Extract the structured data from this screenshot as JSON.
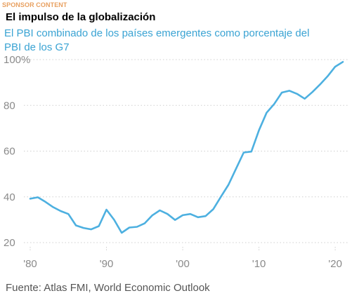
{
  "header": {
    "sponsor_label": "SPONSOR CONTENT",
    "title": "El impulso de la globalización",
    "subtitle": "El PBI combinado de los países emergentes como porcentaje del PBI de los G7"
  },
  "footer": {
    "source": "Fuente: Atlas FMI, World Economic Outlook"
  },
  "colors": {
    "sponsor": "#e8a060",
    "subtitle": "#3aa3d3",
    "line": "#4db0e0",
    "grid": "#cfcfcf",
    "ticks": "#8a8a8a"
  },
  "chart_data": {
    "type": "line",
    "title": "El impulso de la globalización",
    "subtitle": "El PBI combinado de los países emergentes como porcentaje del PBI de los G7",
    "xlim": [
      1980,
      2021
    ],
    "ylim": [
      20,
      100
    ],
    "grid": "horizontal dotted",
    "x_ticks": [
      {
        "value": 1980,
        "label": "'80"
      },
      {
        "value": 1990,
        "label": "'90"
      },
      {
        "value": 2000,
        "label": "'00"
      },
      {
        "value": 2010,
        "label": "'10"
      },
      {
        "value": 2020,
        "label": "'20"
      }
    ],
    "y_ticks": [
      {
        "value": 20,
        "label": "20"
      },
      {
        "value": 40,
        "label": "40"
      },
      {
        "value": 60,
        "label": "60"
      },
      {
        "value": 80,
        "label": "80"
      },
      {
        "value": 100,
        "label": "100%"
      }
    ],
    "series": [
      {
        "x": [
          1980,
          1981,
          1982,
          1983,
          1984,
          1985,
          1986,
          1987,
          1988,
          1989,
          1990,
          1991,
          1992,
          1993,
          1994,
          1995,
          1996,
          1997,
          1998,
          1999,
          2000,
          2001,
          2002,
          2003,
          2004,
          2005,
          2006,
          2007,
          2008,
          2009,
          2010,
          2011,
          2012,
          2013,
          2014,
          2015,
          2016,
          2017,
          2018,
          2019,
          2020,
          2021
        ],
        "values": [
          39.2,
          39.8,
          37.8,
          35.5,
          33.8,
          32.5,
          27.5,
          26.4,
          25.8,
          27.2,
          34.4,
          30.0,
          24.3,
          26.6,
          26.9,
          28.4,
          31.9,
          34.1,
          32.5,
          29.9,
          32.0,
          32.5,
          31.1,
          31.6,
          34.6,
          40.0,
          45.3,
          52.3,
          59.4,
          59.8,
          69.1,
          76.8,
          80.6,
          85.6,
          86.4,
          85.0,
          82.9,
          85.8,
          89.1,
          92.7,
          96.9,
          99.0
        ]
      }
    ]
  }
}
